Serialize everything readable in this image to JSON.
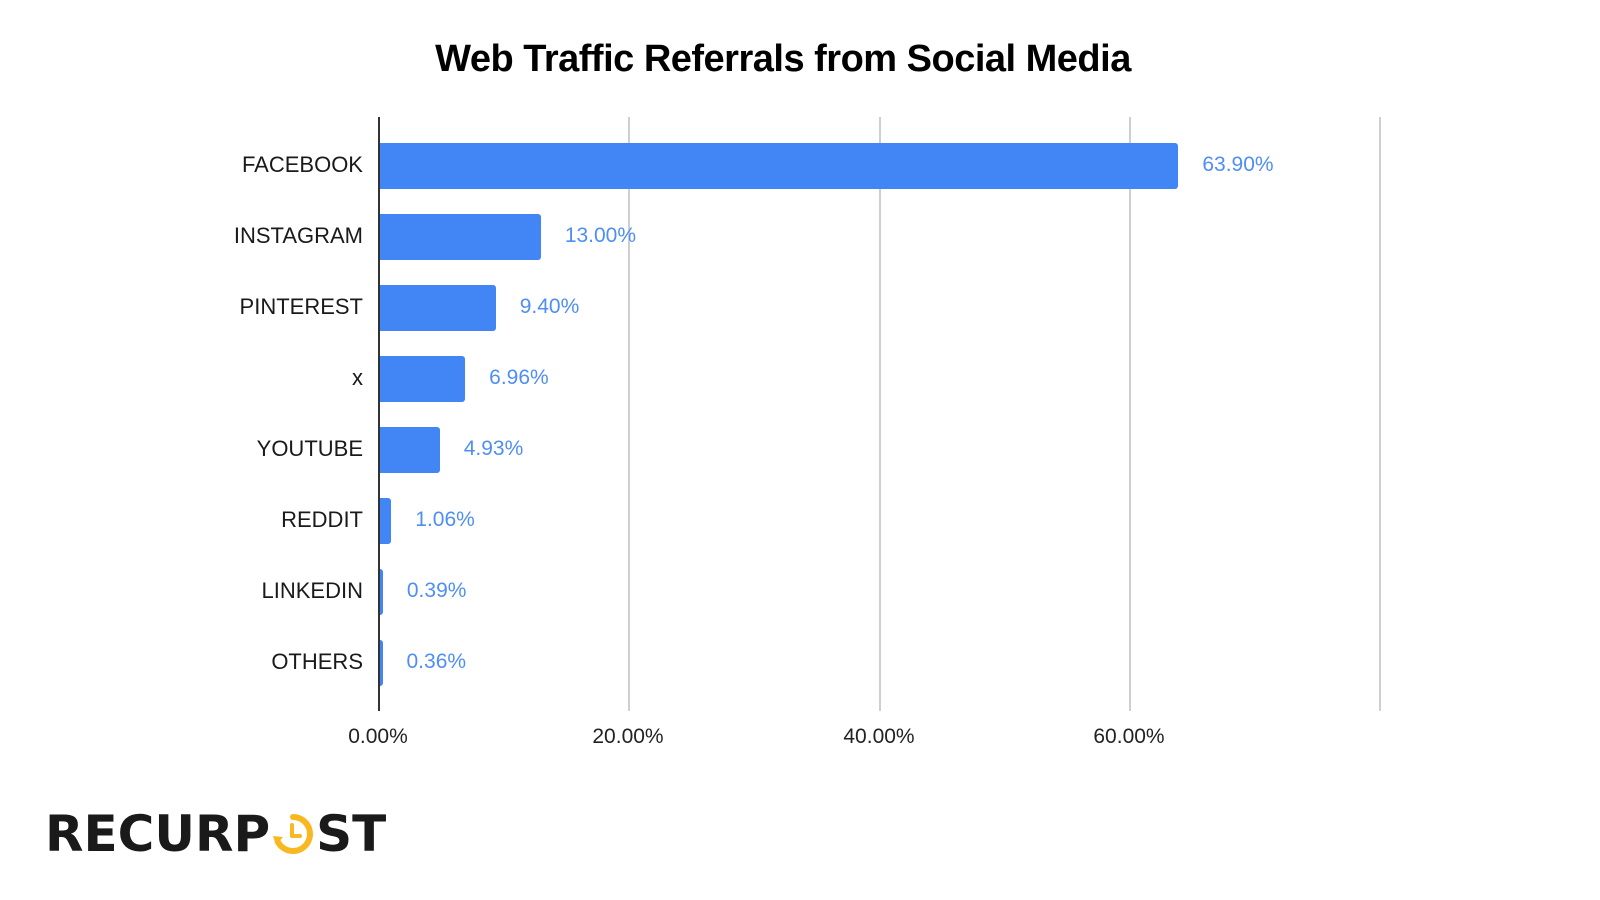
{
  "title": "Web Traffic Referrals from Social Media",
  "chart_data": {
    "type": "bar",
    "orientation": "horizontal",
    "title": "Web Traffic Referrals from Social Media",
    "xlabel": "",
    "ylabel": "",
    "categories": [
      "FACEBOOK",
      "INSTAGRAM",
      "PINTEREST",
      "x",
      "YOUTUBE",
      "REDDIT",
      "LINKEDIN",
      "OTHERS"
    ],
    "values": [
      63.9,
      13.0,
      9.4,
      6.96,
      4.93,
      1.06,
      0.39,
      0.36
    ],
    "value_labels": [
      "63.90%",
      "13.00%",
      "9.40%",
      "6.96%",
      "4.93%",
      "1.06%",
      "0.39%",
      "0.36%"
    ],
    "xlim": [
      0,
      80
    ],
    "xticks": [
      "0.00%",
      "20.00%",
      "40.00%",
      "60.00%"
    ],
    "grid": true,
    "legend": "none",
    "colors": {
      "bar": "#4285f4",
      "label": "#4f8ef5"
    }
  },
  "branding": {
    "logo_prefix": "RECURP",
    "logo_suffix": "ST",
    "logo_accent_color": "#f9b820"
  }
}
